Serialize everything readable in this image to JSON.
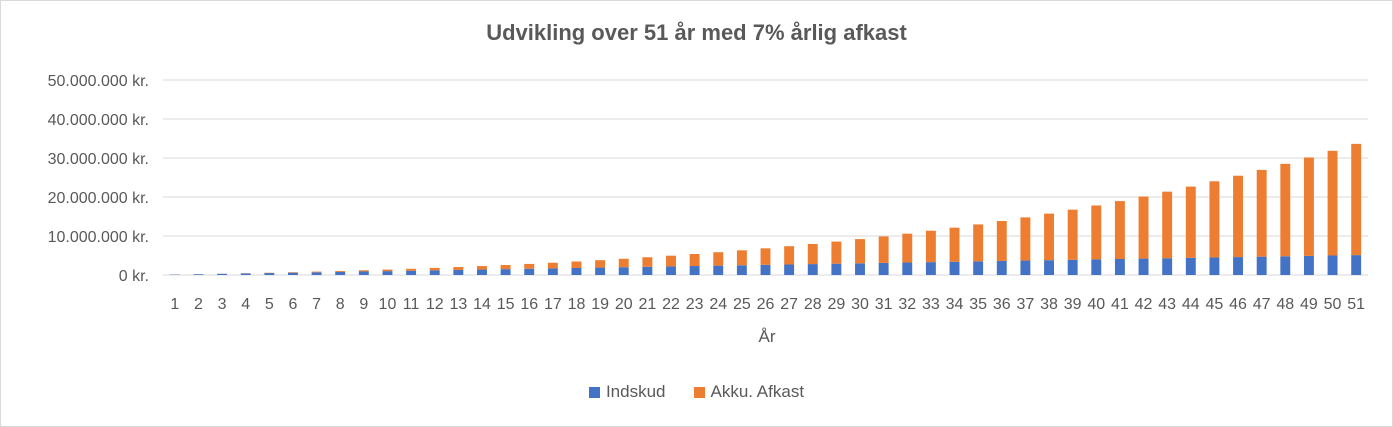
{
  "chart_data": {
    "type": "bar",
    "stacked": true,
    "title": "Udvikling over 51 år med 7% årlig afkast",
    "xlabel": "År",
    "ylabel": "",
    "ylim": [
      0,
      50000000
    ],
    "yticks": [
      "0 kr.",
      "10.000.000 kr.",
      "20.000.000 kr.",
      "30.000.000 kr.",
      "40.000.000 kr.",
      "50.000.000 kr."
    ],
    "ytick_values": [
      0,
      10000000,
      20000000,
      30000000,
      40000000,
      50000000
    ],
    "grid": true,
    "legend_position": "bottom",
    "categories": [
      "1",
      "2",
      "3",
      "4",
      "5",
      "6",
      "7",
      "8",
      "9",
      "10",
      "11",
      "12",
      "13",
      "14",
      "15",
      "16",
      "17",
      "18",
      "19",
      "20",
      "21",
      "22",
      "23",
      "24",
      "25",
      "26",
      "27",
      "28",
      "29",
      "30",
      "31",
      "32",
      "33",
      "34",
      "35",
      "36",
      "37",
      "38",
      "39",
      "40",
      "41",
      "42",
      "43",
      "44",
      "45",
      "46",
      "47",
      "48",
      "49",
      "50",
      "51"
    ],
    "series": [
      {
        "name": "Indskud",
        "color": "#4472c4",
        "values": [
          100000,
          200000,
          300000,
          400000,
          500000,
          600000,
          700000,
          800000,
          900000,
          1000000,
          1100000,
          1200000,
          1300000,
          1400000,
          1500000,
          1600000,
          1700000,
          1800000,
          1900000,
          2000000,
          2100000,
          2200000,
          2300000,
          2400000,
          2500000,
          2600000,
          2700000,
          2800000,
          2900000,
          3000000,
          3100000,
          3200000,
          3300000,
          3400000,
          3500000,
          3600000,
          3700000,
          3800000,
          3900000,
          4000000,
          4100000,
          4200000,
          4300000,
          4400000,
          4500000,
          4600000,
          4700000,
          4800000,
          4900000,
          5000000,
          5100000
        ]
      },
      {
        "name": "Akku. Afkast",
        "color": "#ed7d31",
        "values": [
          0,
          7000,
          21490,
          43994,
          75074,
          116329,
          168372,
          231857,
          307487,
          395943,
          497948,
          614245,
          745622,
          892895,
          1056918,
          1238578,
          1438800,
          1658534,
          1898755,
          2160470,
          2444710,
          2752550,
          3085116,
          3443559,
          3829077,
          4242938,
          4686400,
          5160794,
          5667475,
          6207818,
          6783366,
          7395608,
          8046300,
          8737103,
          9469830,
          10246371,
          11068617,
          11938476,
          12857889,
          13828812,
          14853255,
          15933283,
          17071018,
          18268649,
          19528411,
          20852601,
          22243586,
          23703802,
          25235755,
          26842028,
          28525270
        ]
      }
    ]
  }
}
